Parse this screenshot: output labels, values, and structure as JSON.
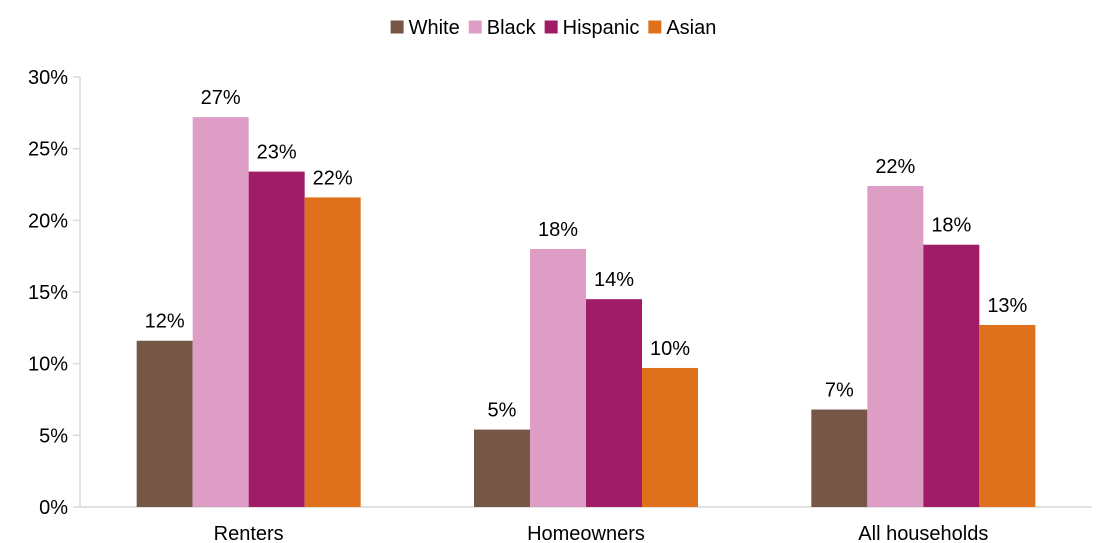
{
  "chart_data": {
    "type": "bar",
    "categories": [
      "Renters",
      "Homeowners",
      "All households"
    ],
    "series": [
      {
        "name": "White",
        "color": "#765646",
        "values": [
          11.6,
          5.4,
          6.8
        ],
        "labels": [
          "12%",
          "5%",
          "7%"
        ]
      },
      {
        "name": "Black",
        "color": "#DE9DC4",
        "values": [
          27.2,
          18.0,
          22.4
        ],
        "labels": [
          "27%",
          "18%",
          "22%"
        ]
      },
      {
        "name": "Hispanic",
        "color": "#A01C67",
        "values": [
          23.4,
          14.5,
          18.3
        ],
        "labels": [
          "23%",
          "14%",
          "18%"
        ]
      },
      {
        "name": "Asian",
        "color": "#DF711C",
        "values": [
          21.6,
          9.7,
          12.7
        ],
        "labels": [
          "22%",
          "10%",
          "13%"
        ]
      }
    ],
    "ylim": [
      0,
      30
    ],
    "yticks": [
      0,
      5,
      10,
      15,
      20,
      25,
      30
    ],
    "ytick_labels": [
      "0%",
      "5%",
      "10%",
      "15%",
      "20%",
      "25%",
      "30%"
    ],
    "legend_position": "top-center",
    "grid": false,
    "axis_color": "#d9d9d9"
  }
}
